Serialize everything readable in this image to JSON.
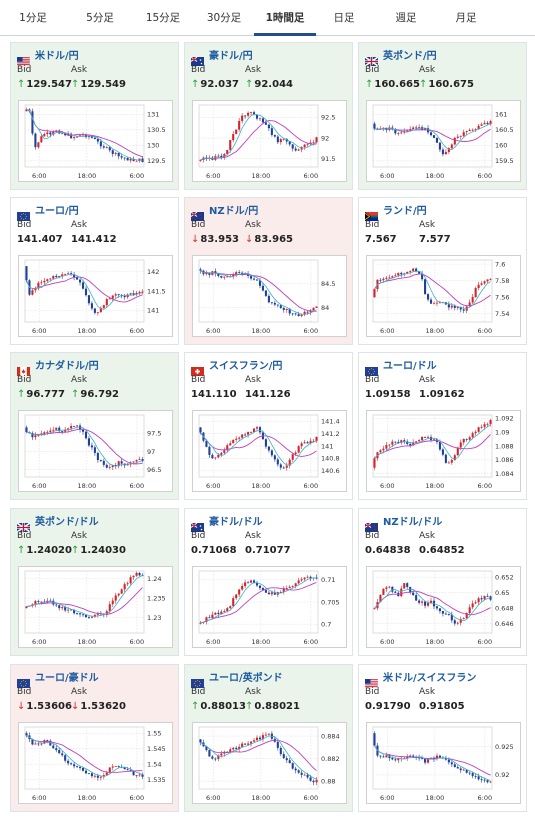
{
  "tabs": [
    {
      "label": "1分足",
      "active": false
    },
    {
      "label": "5分足",
      "active": false
    },
    {
      "label": "15分足",
      "active": false
    },
    {
      "label": "30分足",
      "active": false
    },
    {
      "label": "1時間足",
      "active": true
    },
    {
      "label": "日足",
      "active": false
    },
    {
      "label": "週足",
      "active": false
    },
    {
      "label": "月足",
      "active": false
    }
  ],
  "bid_label": "Bid",
  "ask_label": "Ask",
  "cards": [
    {
      "pair": "米ドル/円",
      "flag": "us",
      "trend": "up",
      "bid": "129.547",
      "ask": "129.549",
      "bid_dir": "up",
      "ask_dir": "up",
      "ma": "purple",
      "chart_data": {
        "type": "candlestick",
        "x_ticks": [
          "6:00",
          "18:00",
          "6:00"
        ],
        "y_ticks": [
          "131",
          "130.5",
          "130",
          "129.5"
        ],
        "y_tick_values": [
          131,
          130.5,
          130,
          129.5
        ],
        "ylim": [
          129.3,
          131.3
        ],
        "grid": true,
        "shape": [
          0.1,
          0.05,
          0.72,
          0.55,
          0.45,
          0.5,
          0.4,
          0.45,
          0.48,
          0.52,
          0.5,
          0.48,
          0.5,
          0.55,
          0.62,
          0.68,
          0.75,
          0.8,
          0.85,
          0.86,
          0.9,
          0.88,
          0.9
        ]
      }
    },
    {
      "pair": "豪ドル/円",
      "flag": "au",
      "trend": "up",
      "bid": "92.037",
      "ask": "92.044",
      "bid_dir": "up",
      "ask_dir": "up",
      "ma": "purple",
      "chart_data": {
        "type": "candlestick",
        "x_ticks": [
          "6:00",
          "18:00",
          "6:00"
        ],
        "y_ticks": [
          "92.5",
          "92",
          "91.5"
        ],
        "y_tick_values": [
          92.5,
          92,
          91.5
        ],
        "ylim": [
          91.3,
          92.8
        ],
        "grid": true,
        "shape": [
          0.9,
          0.85,
          0.88,
          0.86,
          0.82,
          0.8,
          0.6,
          0.4,
          0.2,
          0.15,
          0.12,
          0.2,
          0.28,
          0.35,
          0.5,
          0.6,
          0.55,
          0.65,
          0.75,
          0.7,
          0.65,
          0.6,
          0.55
        ]
      }
    },
    {
      "pair": "英ポンド/円",
      "flag": "gb",
      "trend": "up",
      "bid": "160.665",
      "ask": "160.675",
      "bid_dir": "up",
      "ask_dir": "up",
      "ma": "purple",
      "chart_data": {
        "type": "candlestick",
        "x_ticks": [
          "6:00",
          "18:00",
          "6:00"
        ],
        "y_ticks": [
          "161",
          "160.5",
          "160",
          "159.5"
        ],
        "y_tick_values": [
          161,
          160.5,
          160,
          159.5
        ],
        "ylim": [
          159.3,
          161.3
        ],
        "grid": true,
        "shape": [
          0.3,
          0.4,
          0.35,
          0.38,
          0.42,
          0.45,
          0.42,
          0.4,
          0.38,
          0.35,
          0.4,
          0.5,
          0.6,
          0.8,
          0.75,
          0.6,
          0.5,
          0.45,
          0.42,
          0.38,
          0.35,
          0.3,
          0.28
        ]
      }
    },
    {
      "pair": "ユーロ/円",
      "flag": "eu",
      "trend": "neutral",
      "bid": "141.407",
      "ask": "141.412",
      "bid_dir": "",
      "ask_dir": "",
      "ma": "purple",
      "chart_data": {
        "type": "candlestick",
        "x_ticks": [
          "6:00",
          "18:00",
          "6:00"
        ],
        "y_ticks": [
          "142",
          "141.5",
          "141"
        ],
        "y_tick_values": [
          142,
          141.5,
          141
        ],
        "ylim": [
          140.7,
          142.3
        ],
        "grid": true,
        "shape": [
          0.1,
          0.55,
          0.5,
          0.35,
          0.3,
          0.28,
          0.25,
          0.22,
          0.2,
          0.25,
          0.3,
          0.45,
          0.7,
          0.85,
          0.8,
          0.7,
          0.6,
          0.55,
          0.6,
          0.58,
          0.55,
          0.5,
          0.52
        ]
      }
    },
    {
      "pair": "NZドル/円",
      "flag": "nz",
      "trend": "down",
      "bid": "83.953",
      "ask": "83.965",
      "bid_dir": "down",
      "ask_dir": "down",
      "ma": "purple",
      "chart_data": {
        "type": "candlestick",
        "x_ticks": [
          "6:00",
          "18:00",
          "6:00"
        ],
        "y_ticks": [
          "84.5",
          "84"
        ],
        "y_tick_values": [
          84.5,
          84
        ],
        "ylim": [
          83.7,
          85.0
        ],
        "grid": true,
        "shape": [
          0.15,
          0.2,
          0.22,
          0.18,
          0.25,
          0.3,
          0.28,
          0.22,
          0.2,
          0.25,
          0.3,
          0.35,
          0.5,
          0.65,
          0.7,
          0.72,
          0.78,
          0.85,
          0.9,
          0.88,
          0.85,
          0.8,
          0.75
        ]
      }
    },
    {
      "pair": "ランド/円",
      "flag": "za",
      "trend": "neutral",
      "bid": "7.567",
      "ask": "7.577",
      "bid_dir": "",
      "ask_dir": "",
      "ma": "purple",
      "chart_data": {
        "type": "candlestick",
        "x_ticks": [
          "6:00",
          "18:00",
          "6:00"
        ],
        "y_ticks": [
          "7.6",
          "7.58",
          "7.56",
          "7.54"
        ],
        "y_tick_values": [
          7.6,
          7.58,
          7.56,
          7.54
        ],
        "ylim": [
          7.53,
          7.605
        ],
        "grid": true,
        "shape": [
          0.6,
          0.35,
          0.3,
          0.28,
          0.25,
          0.22,
          0.2,
          0.18,
          0.15,
          0.2,
          0.6,
          0.7,
          0.72,
          0.7,
          0.75,
          0.72,
          0.78,
          0.8,
          0.75,
          0.5,
          0.4,
          0.35,
          0.3
        ]
      }
    },
    {
      "pair": "カナダドル/円",
      "flag": "ca",
      "trend": "up",
      "bid": "96.777",
      "ask": "96.792",
      "bid_dir": "up",
      "ask_dir": "up",
      "ma": "purple",
      "chart_data": {
        "type": "candlestick",
        "x_ticks": [
          "6:00",
          "18:00",
          "6:00"
        ],
        "y_ticks": [
          "97.5",
          "97",
          "96.5"
        ],
        "y_tick_values": [
          97.5,
          97,
          96.5
        ],
        "ylim": [
          96.3,
          98.0
        ],
        "grid": true,
        "shape": [
          0.2,
          0.3,
          0.35,
          0.3,
          0.28,
          0.25,
          0.22,
          0.25,
          0.2,
          0.15,
          0.2,
          0.3,
          0.45,
          0.6,
          0.75,
          0.8,
          0.85,
          0.8,
          0.75,
          0.8,
          0.78,
          0.75,
          0.72
        ]
      }
    },
    {
      "pair": "スイスフラン/円",
      "flag": "ch",
      "trend": "neutral",
      "bid": "141.110",
      "ask": "141.126",
      "bid_dir": "",
      "ask_dir": "",
      "ma": "purple",
      "chart_data": {
        "type": "candlestick",
        "x_ticks": [
          "6:00",
          "18:00",
          "6:00"
        ],
        "y_ticks": [
          "141.4",
          "141.2",
          "141",
          "140.8",
          "140.6"
        ],
        "y_tick_values": [
          141.4,
          141.2,
          141,
          140.8,
          140.6
        ],
        "ylim": [
          140.5,
          141.5
        ],
        "grid": true,
        "shape": [
          0.2,
          0.4,
          0.6,
          0.7,
          0.65,
          0.55,
          0.45,
          0.4,
          0.35,
          0.3,
          0.25,
          0.2,
          0.35,
          0.55,
          0.7,
          0.8,
          0.85,
          0.75,
          0.6,
          0.5,
          0.45,
          0.4,
          0.38
        ]
      }
    },
    {
      "pair": "ユーロ/ドル",
      "flag": "eu",
      "trend": "neutral",
      "bid": "1.09158",
      "ask": "1.09162",
      "bid_dir": "",
      "ask_dir": "",
      "ma": "purple",
      "chart_data": {
        "type": "candlestick",
        "x_ticks": [
          "6:00",
          "18:00",
          "6:00"
        ],
        "y_ticks": [
          "1.092",
          "1.09",
          "1.088",
          "1.086",
          "1.084"
        ],
        "y_tick_values": [
          1.092,
          1.09,
          1.088,
          1.086,
          1.084
        ],
        "ylim": [
          1.0835,
          1.0925
        ],
        "grid": true,
        "shape": [
          0.85,
          0.6,
          0.55,
          0.5,
          0.45,
          0.42,
          0.45,
          0.48,
          0.45,
          0.4,
          0.35,
          0.38,
          0.4,
          0.6,
          0.8,
          0.7,
          0.5,
          0.4,
          0.35,
          0.3,
          0.2,
          0.15,
          0.1
        ]
      }
    },
    {
      "pair": "英ポンド/ドル",
      "flag": "gb",
      "trend": "up",
      "bid": "1.24020",
      "ask": "1.24030",
      "bid_dir": "up",
      "ask_dir": "up",
      "ma": "purple",
      "chart_data": {
        "type": "candlestick",
        "x_ticks": [
          "6:00",
          "18:00",
          "6:00"
        ],
        "y_ticks": [
          "1.24",
          "1.235",
          "1.23"
        ],
        "y_tick_values": [
          1.24,
          1.235,
          1.23
        ],
        "ylim": [
          1.226,
          1.242
        ],
        "grid": true,
        "shape": [
          0.6,
          0.55,
          0.5,
          0.52,
          0.48,
          0.5,
          0.55,
          0.6,
          0.62,
          0.65,
          0.7,
          0.72,
          0.75,
          0.7,
          0.68,
          0.7,
          0.5,
          0.4,
          0.3,
          0.2,
          0.1,
          0.05,
          0.08
        ]
      }
    },
    {
      "pair": "豪ドル/ドル",
      "flag": "au",
      "trend": "neutral",
      "bid": "0.71068",
      "ask": "0.71077",
      "bid_dir": "",
      "ask_dir": "",
      "ma": "purple",
      "chart_data": {
        "type": "candlestick",
        "x_ticks": [
          "6:00",
          "18:00",
          "6:00"
        ],
        "y_ticks": [
          "0.71",
          "0.705",
          "0.7"
        ],
        "y_tick_values": [
          0.71,
          0.705,
          0.7
        ],
        "ylim": [
          0.698,
          0.712
        ],
        "grid": true,
        "shape": [
          0.85,
          0.8,
          0.75,
          0.7,
          0.68,
          0.65,
          0.55,
          0.4,
          0.25,
          0.2,
          0.18,
          0.22,
          0.3,
          0.35,
          0.38,
          0.32,
          0.3,
          0.25,
          0.2,
          0.15,
          0.12,
          0.1,
          0.12
        ]
      }
    },
    {
      "pair": "NZドル/ドル",
      "flag": "nz",
      "trend": "neutral",
      "bid": "0.64838",
      "ask": "0.64852",
      "bid_dir": "",
      "ask_dir": "",
      "ma": "purple",
      "chart_data": {
        "type": "candlestick",
        "x_ticks": [
          "6:00",
          "18:00",
          "6:00"
        ],
        "y_ticks": [
          "0.652",
          "0.65",
          "0.648",
          "0.646"
        ],
        "y_tick_values": [
          0.652,
          0.65,
          0.648,
          0.646
        ],
        "ylim": [
          0.6448,
          0.6528
        ],
        "grid": true,
        "shape": [
          0.6,
          0.55,
          0.3,
          0.25,
          0.35,
          0.4,
          0.2,
          0.3,
          0.45,
          0.5,
          0.55,
          0.5,
          0.6,
          0.65,
          0.7,
          0.8,
          0.85,
          0.75,
          0.6,
          0.5,
          0.45,
          0.4,
          0.45
        ]
      }
    },
    {
      "pair": "ユーロ/豪ドル",
      "flag": "eu",
      "trend": "down",
      "bid": "1.53606",
      "ask": "1.53620",
      "bid_dir": "down",
      "ask_dir": "down",
      "ma": "purple",
      "chart_data": {
        "type": "candlestick",
        "x_ticks": [
          "6:00",
          "18:00",
          "6:00"
        ],
        "y_ticks": [
          "1.55",
          "1.545",
          "1.54",
          "1.535"
        ],
        "y_tick_values": [
          1.55,
          1.545,
          1.54,
          1.535
        ],
        "ylim": [
          1.532,
          1.552
        ],
        "grid": true,
        "shape": [
          0.1,
          0.2,
          0.3,
          0.25,
          0.22,
          0.28,
          0.35,
          0.45,
          0.55,
          0.6,
          0.65,
          0.7,
          0.75,
          0.8,
          0.85,
          0.75,
          0.65,
          0.6,
          0.65,
          0.7,
          0.75,
          0.8,
          0.78
        ]
      }
    },
    {
      "pair": "ユーロ/英ポンド",
      "flag": "eu",
      "trend": "up",
      "bid": "0.88013",
      "ask": "0.88021",
      "bid_dir": "up",
      "ask_dir": "up",
      "ma": "purple",
      "chart_data": {
        "type": "candlestick",
        "x_ticks": [
          "6:00",
          "18:00",
          "6:00"
        ],
        "y_ticks": [
          "0.884",
          "0.882",
          "0.88"
        ],
        "y_tick_values": [
          0.884,
          0.882,
          0.88
        ],
        "ylim": [
          0.8793,
          0.8848
        ],
        "grid": true,
        "shape": [
          0.2,
          0.3,
          0.45,
          0.5,
          0.48,
          0.42,
          0.38,
          0.35,
          0.3,
          0.28,
          0.25,
          0.2,
          0.15,
          0.1,
          0.2,
          0.35,
          0.5,
          0.6,
          0.7,
          0.75,
          0.8,
          0.85,
          0.88
        ]
      }
    },
    {
      "pair": "米ドル/スイスフラン",
      "flag": "us",
      "trend": "neutral",
      "bid": "0.91790",
      "ask": "0.91805",
      "bid_dir": "",
      "ask_dir": "",
      "ma": "purple",
      "chart_data": {
        "type": "candlestick",
        "x_ticks": [
          "6:00",
          "18:00",
          "6:00"
        ],
        "y_ticks": [
          "0.925",
          "0.92"
        ],
        "y_tick_values": [
          0.925,
          0.92
        ],
        "ylim": [
          0.9175,
          0.9285
        ],
        "grid": true,
        "shape": [
          0.1,
          0.45,
          0.5,
          0.48,
          0.5,
          0.52,
          0.5,
          0.48,
          0.5,
          0.52,
          0.55,
          0.5,
          0.48,
          0.5,
          0.55,
          0.6,
          0.65,
          0.7,
          0.75,
          0.8,
          0.88,
          0.85,
          0.9
        ]
      }
    }
  ]
}
